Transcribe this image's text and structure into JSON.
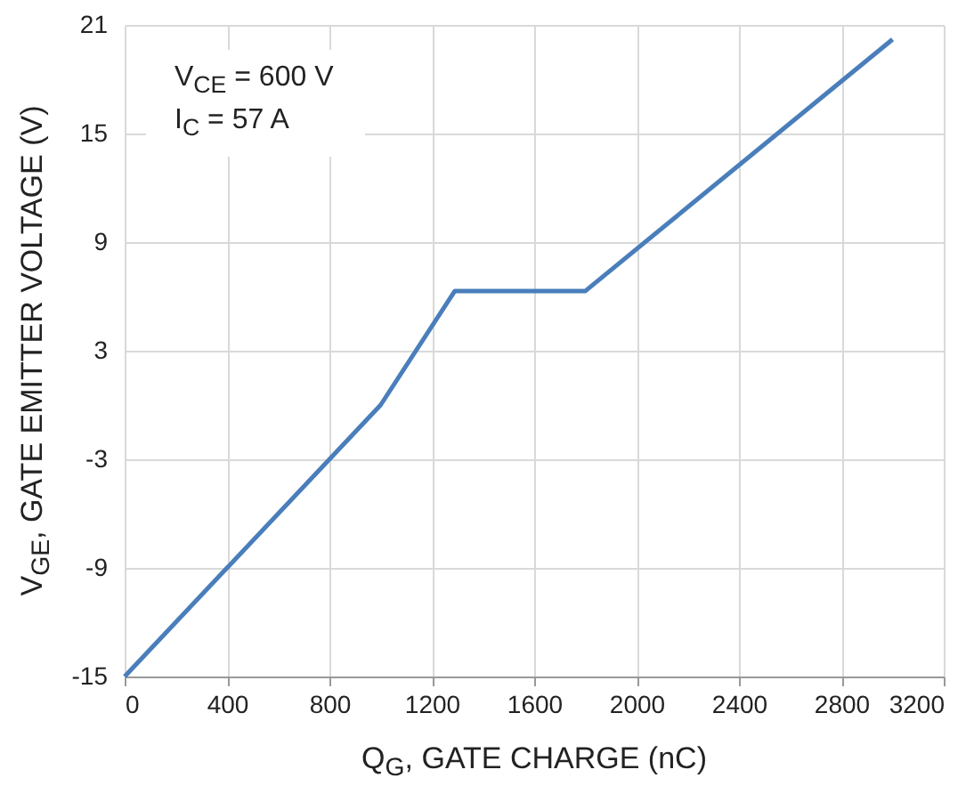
{
  "chart_data": {
    "type": "line",
    "xlabel": "Q$_{G}$, GATE CHARGE (nC)",
    "ylabel": "V$_{GE}$, GATE EMITTER VOLTAGE (V)",
    "annotations": [
      "V$_{CE}$ = 600 V",
      "I$_{C}$ = 57 A"
    ],
    "x": [
      0,
      1000,
      1290,
      1800,
      3000
    ],
    "series": [
      {
        "color": "#4a7ebb",
        "values": [
          -15,
          0,
          6.3,
          6.3,
          20.2
        ]
      }
    ],
    "xlim": [
      0,
      3200
    ],
    "xticks": [
      0,
      400,
      800,
      1200,
      1600,
      2000,
      2400,
      2800,
      3200
    ],
    "ylim": [
      -15,
      21
    ],
    "yticks": [
      -15,
      -9,
      -3,
      3,
      9,
      15,
      21
    ],
    "grid": true,
    "marker": "none",
    "line_style": "solid"
  }
}
